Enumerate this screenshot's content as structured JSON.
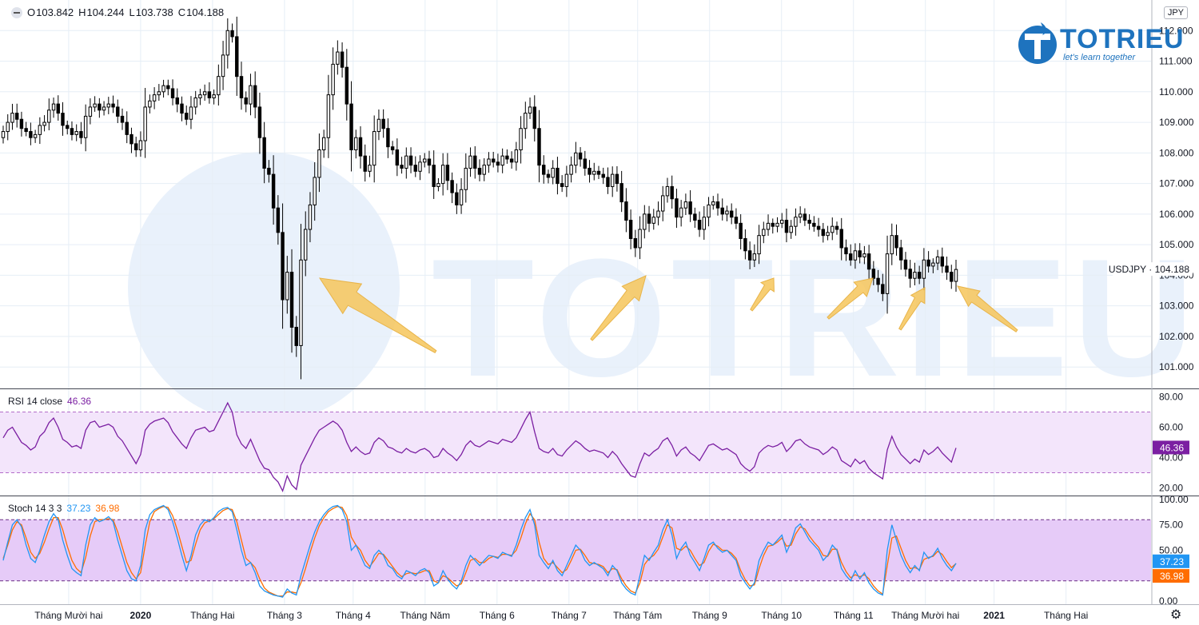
{
  "ohlc": {
    "open_label": "O",
    "open": "103.842",
    "high_label": "H",
    "high": "104.244",
    "low_label": "L",
    "low": "103.738",
    "close_label": "C",
    "close": "104.188"
  },
  "currency": "JPY",
  "logo": {
    "text": "TOTRIEU",
    "tagline": "let's learn together"
  },
  "symbol_label": {
    "symbol": "USDJPY",
    "price": "104.188",
    "text": "USDJPY · 104.188"
  },
  "rsi": {
    "label": "RSI 14 close",
    "value": "46.36"
  },
  "stoch": {
    "label": "Stoch 14 3 3",
    "k": "37.23",
    "d": "36.98"
  },
  "colors": {
    "candle": "#000000",
    "rsi_line": "#7b1fa2",
    "rsi_band": "#f3e5fb",
    "stoch_k": "#2196f3",
    "stoch_d": "#ff6d00",
    "stoch_band": "#e6cbf8",
    "arrow": "#f6c65b",
    "grid": "#e6eef6",
    "watermark": "#e9f1fb",
    "rsi_badge": "#7b1fa2",
    "stoch_k_badge": "#2196f3",
    "stoch_d_badge": "#ff6d00"
  },
  "icons": {
    "settings": "gear-icon",
    "legend_toggle": "minus-circle-icon",
    "logo": "flame-t-icon"
  },
  "chart_data": [
    {
      "type": "candlestick",
      "title": "",
      "ylim": [
        100.3,
        113.0
      ],
      "y_ticks": [
        101.0,
        102.0,
        103.0,
        104.0,
        105.0,
        106.0,
        107.0,
        108.0,
        109.0,
        110.0,
        111.0,
        112.0
      ],
      "y_tick_labels": [
        "101.000",
        "102.000",
        "103.000",
        "104.000",
        "105.000",
        "106.000",
        "107.000",
        "108.000",
        "109.000",
        "110.000",
        "111.000",
        "112.000"
      ],
      "x_tick_labels": [
        "Tháng Mười hai",
        "2020",
        "Tháng Hai",
        "Tháng 3",
        "Tháng 4",
        "Tháng Năm",
        "Tháng 6",
        "Tháng 7",
        "Tháng Tám",
        "Tháng 9",
        "Tháng 10",
        "Tháng 11",
        "Tháng Mười hai",
        "2021",
        "Tháng Hai"
      ],
      "x_tick_index": [
        21,
        43,
        65,
        87,
        108,
        130,
        152,
        174,
        195,
        217,
        239,
        261,
        283,
        304,
        326
      ],
      "x_range": [
        0,
        352
      ],
      "close": [
        108.7,
        109.0,
        109.3,
        109.1,
        108.8,
        108.7,
        108.5,
        108.6,
        108.9,
        109.0,
        109.4,
        109.6,
        109.3,
        108.9,
        108.8,
        108.6,
        108.7,
        108.5,
        109.2,
        109.5,
        109.6,
        109.4,
        109.5,
        109.6,
        109.5,
        109.2,
        109.0,
        108.6,
        108.3,
        108.1,
        108.4,
        109.5,
        109.7,
        109.9,
        110.0,
        110.2,
        110.1,
        109.8,
        109.6,
        109.3,
        109.1,
        109.5,
        109.8,
        109.9,
        110.0,
        109.8,
        109.9,
        110.5,
        111.2,
        112.0,
        111.8,
        110.5,
        109.8,
        109.6,
        110.2,
        109.5,
        108.5,
        107.5,
        107.3,
        106.2,
        105.4,
        103.2,
        104.1,
        102.3,
        101.7,
        104.5,
        105.5,
        106.3,
        107.2,
        108.1,
        108.5,
        109.9,
        110.9,
        111.3,
        110.8,
        109.6,
        108.1,
        108.5,
        107.9,
        107.4,
        107.6,
        108.7,
        109.1,
        108.8,
        108.2,
        108.1,
        107.6,
        107.5,
        107.9,
        107.6,
        107.4,
        107.7,
        107.8,
        107.6,
        106.9,
        107.0,
        107.6,
        107.1,
        106.7,
        106.3,
        106.8,
        107.5,
        107.9,
        107.5,
        107.3,
        107.6,
        107.8,
        107.7,
        107.6,
        107.9,
        107.8,
        107.7,
        108.1,
        108.8,
        109.3,
        109.5,
        108.8,
        107.6,
        107.3,
        107.2,
        107.5,
        107.0,
        106.9,
        107.3,
        107.6,
        108.0,
        107.8,
        107.5,
        107.3,
        107.4,
        107.3,
        107.2,
        106.9,
        107.3,
        107.0,
        106.4,
        105.8,
        105.2,
        104.9,
        105.5,
        106.0,
        105.7,
        105.9,
        106.1,
        106.6,
        106.9,
        106.5,
        105.9,
        106.2,
        106.4,
        106.0,
        105.8,
        105.5,
        105.9,
        106.3,
        106.4,
        106.2,
        106.0,
        106.1,
        105.9,
        105.7,
        105.2,
        104.8,
        104.5,
        104.7,
        105.3,
        105.5,
        105.7,
        105.6,
        105.7,
        105.8,
        105.4,
        105.6,
        105.9,
        106.0,
        105.8,
        105.7,
        105.6,
        105.5,
        105.3,
        105.4,
        105.6,
        105.5,
        104.9,
        104.7,
        104.5,
        104.8,
        104.6,
        104.7,
        104.2,
        103.9,
        103.7,
        103.4,
        104.7,
        105.3,
        104.9,
        104.5,
        104.2,
        103.9,
        104.1,
        103.9,
        104.5,
        104.3,
        104.4,
        104.6,
        104.3,
        104.1,
        103.8,
        104.19
      ]
    },
    {
      "type": "line",
      "title": "RSI 14 close",
      "ylim": [
        15,
        85
      ],
      "y_ticks": [
        20,
        40,
        60,
        80
      ],
      "y_tick_labels": [
        "20.00",
        "40.00",
        "60.00",
        "80.00"
      ],
      "bands": [
        30,
        70
      ],
      "series": [
        {
          "name": "RSI",
          "values": [
            53,
            58,
            60,
            55,
            50,
            48,
            45,
            47,
            54,
            57,
            63,
            66,
            60,
            52,
            50,
            47,
            48,
            46,
            58,
            63,
            64,
            60,
            61,
            62,
            60,
            54,
            51,
            46,
            41,
            36,
            42,
            58,
            62,
            64,
            65,
            66,
            63,
            57,
            53,
            49,
            46,
            53,
            58,
            59,
            60,
            57,
            58,
            64,
            70,
            76,
            70,
            55,
            49,
            46,
            52,
            45,
            38,
            33,
            32,
            27,
            24,
            18,
            28,
            22,
            19,
            35,
            41,
            47,
            53,
            58,
            60,
            62,
            64,
            62,
            58,
            50,
            44,
            47,
            44,
            42,
            43,
            50,
            53,
            51,
            47,
            46,
            44,
            43,
            46,
            44,
            43,
            45,
            46,
            44,
            40,
            41,
            46,
            43,
            41,
            38,
            42,
            48,
            51,
            48,
            47,
            49,
            51,
            50,
            49,
            52,
            51,
            50,
            53,
            59,
            65,
            70,
            57,
            46,
            44,
            43,
            46,
            42,
            41,
            45,
            48,
            51,
            49,
            46,
            44,
            45,
            44,
            43,
            40,
            44,
            41,
            36,
            32,
            28,
            27,
            36,
            43,
            41,
            44,
            46,
            51,
            53,
            48,
            41,
            45,
            47,
            43,
            41,
            38,
            43,
            48,
            49,
            47,
            45,
            46,
            44,
            42,
            36,
            33,
            31,
            34,
            43,
            46,
            48,
            47,
            48,
            50,
            44,
            47,
            51,
            52,
            49,
            47,
            46,
            45,
            42,
            44,
            47,
            45,
            38,
            36,
            34,
            39,
            36,
            38,
            33,
            30,
            28,
            26,
            45,
            54,
            47,
            42,
            39,
            36,
            39,
            37,
            45,
            42,
            44,
            47,
            43,
            40,
            37,
            46.36
          ]
        }
      ]
    },
    {
      "type": "line",
      "title": "Stoch 14 3 3",
      "ylim": [
        -3,
        103
      ],
      "y_ticks": [
        0,
        25,
        50,
        75,
        100
      ],
      "y_tick_labels": [
        "0.00",
        "25.00",
        "50.00",
        "75.00",
        "100.00"
      ],
      "bands": [
        20,
        80
      ],
      "series": [
        {
          "name": "%K",
          "values": [
            40,
            58,
            75,
            80,
            73,
            55,
            42,
            38,
            50,
            65,
            78,
            86,
            80,
            60,
            45,
            32,
            28,
            25,
            55,
            75,
            82,
            78,
            80,
            83,
            78,
            60,
            45,
            30,
            22,
            20,
            35,
            70,
            85,
            90,
            92,
            94,
            90,
            78,
            62,
            45,
            30,
            45,
            65,
            75,
            80,
            78,
            82,
            88,
            91,
            92,
            88,
            70,
            50,
            35,
            38,
            28,
            15,
            10,
            8,
            6,
            5,
            4,
            12,
            8,
            6,
            25,
            40,
            55,
            68,
            78,
            85,
            90,
            93,
            94,
            90,
            78,
            50,
            55,
            45,
            35,
            32,
            45,
            50,
            45,
            35,
            32,
            25,
            22,
            30,
            28,
            25,
            30,
            32,
            28,
            15,
            18,
            30,
            22,
            16,
            12,
            20,
            35,
            45,
            40,
            35,
            40,
            45,
            44,
            42,
            48,
            46,
            44,
            55,
            70,
            82,
            90,
            75,
            45,
            38,
            32,
            40,
            30,
            25,
            35,
            45,
            55,
            50,
            40,
            35,
            38,
            35,
            32,
            25,
            35,
            30,
            18,
            12,
            8,
            6,
            25,
            45,
            40,
            48,
            55,
            70,
            80,
            65,
            42,
            52,
            58,
            45,
            38,
            30,
            42,
            55,
            58,
            52,
            48,
            50,
            45,
            40,
            25,
            18,
            12,
            18,
            40,
            50,
            58,
            55,
            60,
            65,
            48,
            58,
            72,
            76,
            68,
            60,
            55,
            50,
            40,
            45,
            55,
            50,
            32,
            25,
            20,
            30,
            22,
            28,
            18,
            12,
            8,
            6,
            50,
            75,
            60,
            45,
            35,
            28,
            35,
            30,
            48,
            42,
            45,
            52,
            42,
            35,
            30,
            37.23
          ]
        },
        {
          "name": "%D",
          "values": [
            42,
            55,
            70,
            78,
            75,
            62,
            48,
            42,
            47,
            58,
            71,
            82,
            82,
            70,
            54,
            40,
            32,
            28,
            43,
            64,
            78,
            80,
            80,
            81,
            80,
            68,
            53,
            38,
            28,
            22,
            28,
            55,
            78,
            88,
            91,
            93,
            92,
            84,
            70,
            54,
            38,
            40,
            56,
            70,
            77,
            79,
            81,
            85,
            89,
            91,
            90,
            78,
            60,
            42,
            38,
            33,
            22,
            13,
            9,
            7,
            5,
            5,
            9,
            9,
            8,
            18,
            32,
            48,
            62,
            74,
            82,
            88,
            91,
            93,
            92,
            84,
            63,
            55,
            50,
            40,
            34,
            40,
            47,
            46,
            40,
            34,
            28,
            24,
            27,
            28,
            27,
            28,
            30,
            30,
            20,
            18,
            25,
            23,
            19,
            15,
            17,
            28,
            40,
            42,
            38,
            38,
            42,
            44,
            43,
            46,
            46,
            45,
            50,
            62,
            76,
            86,
            80,
            58,
            42,
            36,
            38,
            33,
            28,
            31,
            40,
            50,
            51,
            45,
            38,
            37,
            36,
            34,
            28,
            32,
            31,
            22,
            15,
            10,
            8,
            18,
            36,
            42,
            45,
            51,
            63,
            75,
            72,
            52,
            50,
            54,
            50,
            42,
            35,
            38,
            49,
            56,
            54,
            50,
            50,
            47,
            42,
            30,
            21,
            15,
            16,
            32,
            45,
            54,
            55,
            58,
            62,
            54,
            55,
            66,
            73,
            71,
            64,
            58,
            53,
            45,
            44,
            51,
            51,
            38,
            29,
            23,
            26,
            24,
            26,
            22,
            15,
            10,
            7,
            35,
            62,
            64,
            52,
            40,
            32,
            33,
            31,
            41,
            43,
            44,
            49,
            46,
            39,
            33,
            36.98
          ]
        }
      ]
    }
  ]
}
